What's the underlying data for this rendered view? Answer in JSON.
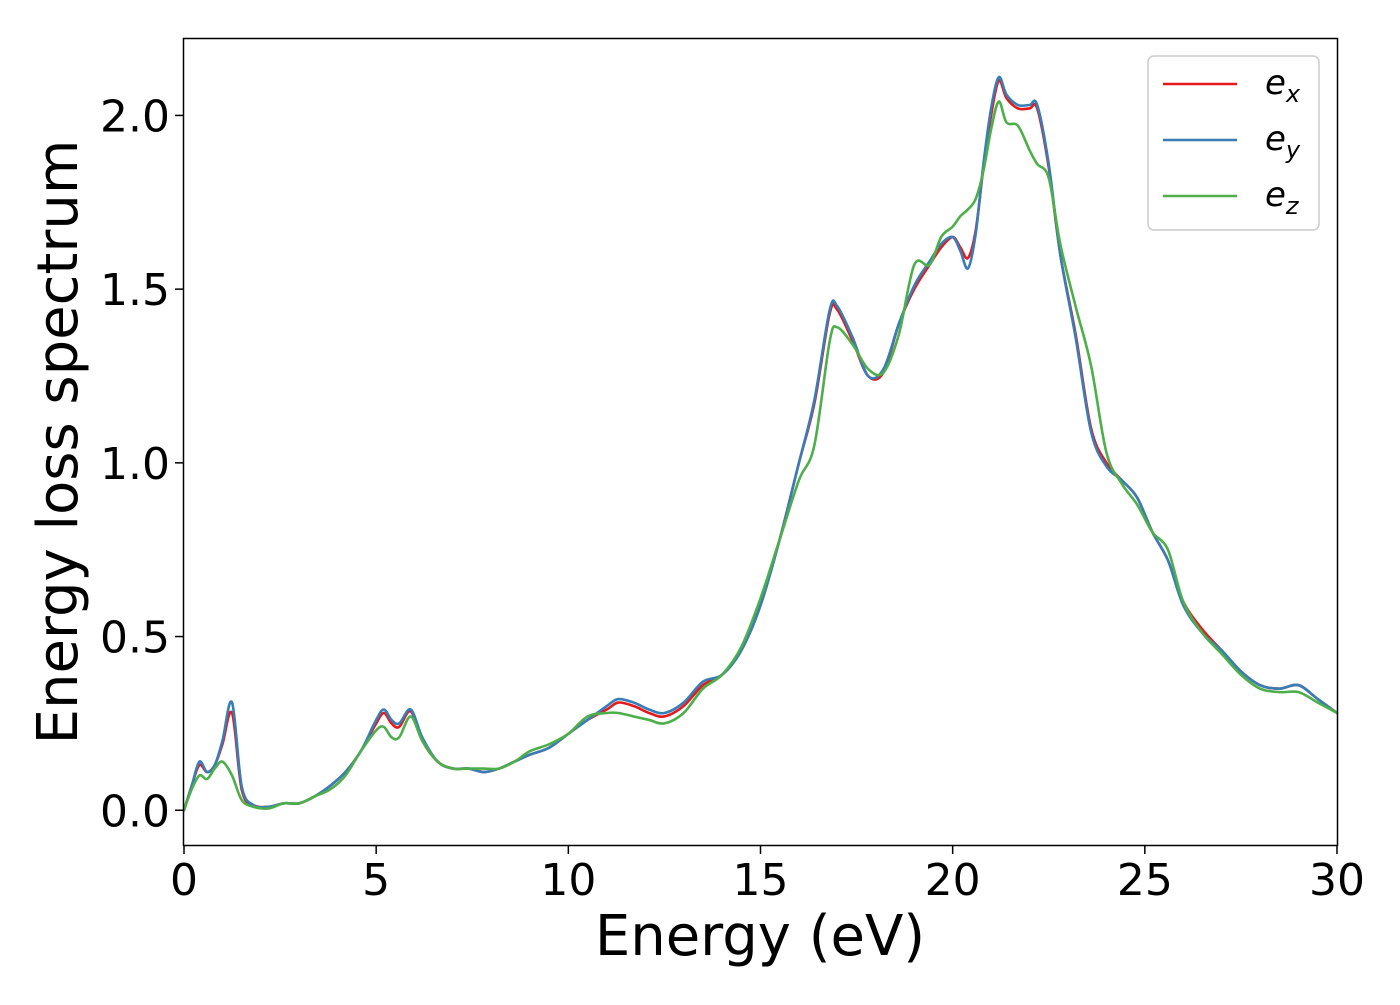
{
  "chart_data": {
    "type": "line",
    "title": "",
    "xlabel": "Energy (eV)",
    "ylabel": "Energy loss spectrum",
    "xlim": [
      0,
      30
    ],
    "ylim": [
      -0.1,
      2.22
    ],
    "xticks": [
      0,
      5,
      10,
      15,
      20,
      25,
      30
    ],
    "xtick_labels": [
      "0",
      "5",
      "10",
      "15",
      "20",
      "25",
      "30"
    ],
    "yticks": [
      0.0,
      0.5,
      1.0,
      1.5,
      2.0
    ],
    "ytick_labels": [
      "0.0",
      "0.5",
      "1.0",
      "1.5",
      "2.0"
    ],
    "grid": false,
    "legend_position": "top-right",
    "x": [
      0,
      0.2,
      0.4,
      0.6,
      0.8,
      1.0,
      1.25,
      1.5,
      1.8,
      2.2,
      2.6,
      3.0,
      3.4,
      3.8,
      4.2,
      4.6,
      5.0,
      5.2,
      5.4,
      5.6,
      5.9,
      6.2,
      6.6,
      7.0,
      7.4,
      7.8,
      8.2,
      8.6,
      9.0,
      9.5,
      10.0,
      10.5,
      11.0,
      11.3,
      11.7,
      12.1,
      12.5,
      13.0,
      13.5,
      14.0,
      14.5,
      15.0,
      15.5,
      16.0,
      16.4,
      16.8,
      17.0,
      17.4,
      17.8,
      18.2,
      18.6,
      19.0,
      19.4,
      19.7,
      20.0,
      20.2,
      20.4,
      20.6,
      20.8,
      21.0,
      21.2,
      21.4,
      21.7,
      22.0,
      22.2,
      22.5,
      22.8,
      23.2,
      23.6,
      24.0,
      24.4,
      24.8,
      25.2,
      25.6,
      26.0,
      26.5,
      27.0,
      27.5,
      28.0,
      28.5,
      29.0,
      29.5,
      30.0
    ],
    "series": [
      {
        "name": "e_x",
        "label_base": "e",
        "label_sub": "x",
        "color": "#e41a1c",
        "values": [
          0.0,
          0.07,
          0.13,
          0.11,
          0.13,
          0.19,
          0.28,
          0.06,
          0.015,
          0.01,
          0.02,
          0.02,
          0.04,
          0.07,
          0.11,
          0.17,
          0.25,
          0.28,
          0.25,
          0.24,
          0.285,
          0.2,
          0.14,
          0.12,
          0.12,
          0.11,
          0.12,
          0.14,
          0.16,
          0.18,
          0.22,
          0.26,
          0.29,
          0.31,
          0.3,
          0.28,
          0.27,
          0.3,
          0.36,
          0.39,
          0.46,
          0.59,
          0.78,
          1.0,
          1.17,
          1.43,
          1.44,
          1.35,
          1.25,
          1.26,
          1.4,
          1.5,
          1.57,
          1.62,
          1.65,
          1.62,
          1.59,
          1.67,
          1.85,
          2.0,
          2.1,
          2.05,
          2.02,
          2.02,
          2.02,
          1.85,
          1.6,
          1.37,
          1.1,
          1.0,
          0.95,
          0.9,
          0.8,
          0.72,
          0.6,
          0.52,
          0.46,
          0.4,
          0.36,
          0.35,
          0.36,
          0.32,
          0.28
        ]
      },
      {
        "name": "e_y",
        "label_base": "e",
        "label_sub": "y",
        "color": "#377eb8",
        "values": [
          0.0,
          0.07,
          0.14,
          0.11,
          0.13,
          0.2,
          0.31,
          0.07,
          0.015,
          0.01,
          0.02,
          0.02,
          0.04,
          0.07,
          0.11,
          0.17,
          0.26,
          0.29,
          0.26,
          0.25,
          0.29,
          0.21,
          0.14,
          0.12,
          0.12,
          0.11,
          0.12,
          0.14,
          0.16,
          0.18,
          0.22,
          0.26,
          0.3,
          0.32,
          0.31,
          0.29,
          0.28,
          0.31,
          0.37,
          0.39,
          0.46,
          0.59,
          0.78,
          1.0,
          1.18,
          1.44,
          1.45,
          1.36,
          1.25,
          1.27,
          1.4,
          1.51,
          1.58,
          1.63,
          1.65,
          1.61,
          1.56,
          1.66,
          1.86,
          2.02,
          2.11,
          2.06,
          2.03,
          2.03,
          2.03,
          1.86,
          1.6,
          1.36,
          1.09,
          0.99,
          0.95,
          0.9,
          0.8,
          0.72,
          0.59,
          0.51,
          0.46,
          0.4,
          0.36,
          0.35,
          0.36,
          0.32,
          0.28
        ]
      },
      {
        "name": "e_z",
        "label_base": "e",
        "label_sub": "z",
        "color": "#4daf4a",
        "values": [
          0.0,
          0.06,
          0.1,
          0.09,
          0.12,
          0.14,
          0.1,
          0.03,
          0.01,
          0.005,
          0.02,
          0.02,
          0.04,
          0.06,
          0.1,
          0.17,
          0.23,
          0.24,
          0.21,
          0.21,
          0.27,
          0.2,
          0.14,
          0.12,
          0.12,
          0.12,
          0.12,
          0.14,
          0.17,
          0.19,
          0.22,
          0.27,
          0.28,
          0.28,
          0.27,
          0.26,
          0.25,
          0.28,
          0.35,
          0.39,
          0.47,
          0.61,
          0.78,
          0.95,
          1.05,
          1.35,
          1.39,
          1.34,
          1.27,
          1.26,
          1.37,
          1.57,
          1.57,
          1.65,
          1.68,
          1.71,
          1.73,
          1.76,
          1.84,
          1.96,
          2.04,
          1.98,
          1.97,
          1.9,
          1.86,
          1.82,
          1.63,
          1.45,
          1.28,
          1.03,
          0.94,
          0.88,
          0.8,
          0.75,
          0.6,
          0.51,
          0.45,
          0.39,
          0.35,
          0.34,
          0.34,
          0.31,
          0.28
        ]
      }
    ]
  }
}
